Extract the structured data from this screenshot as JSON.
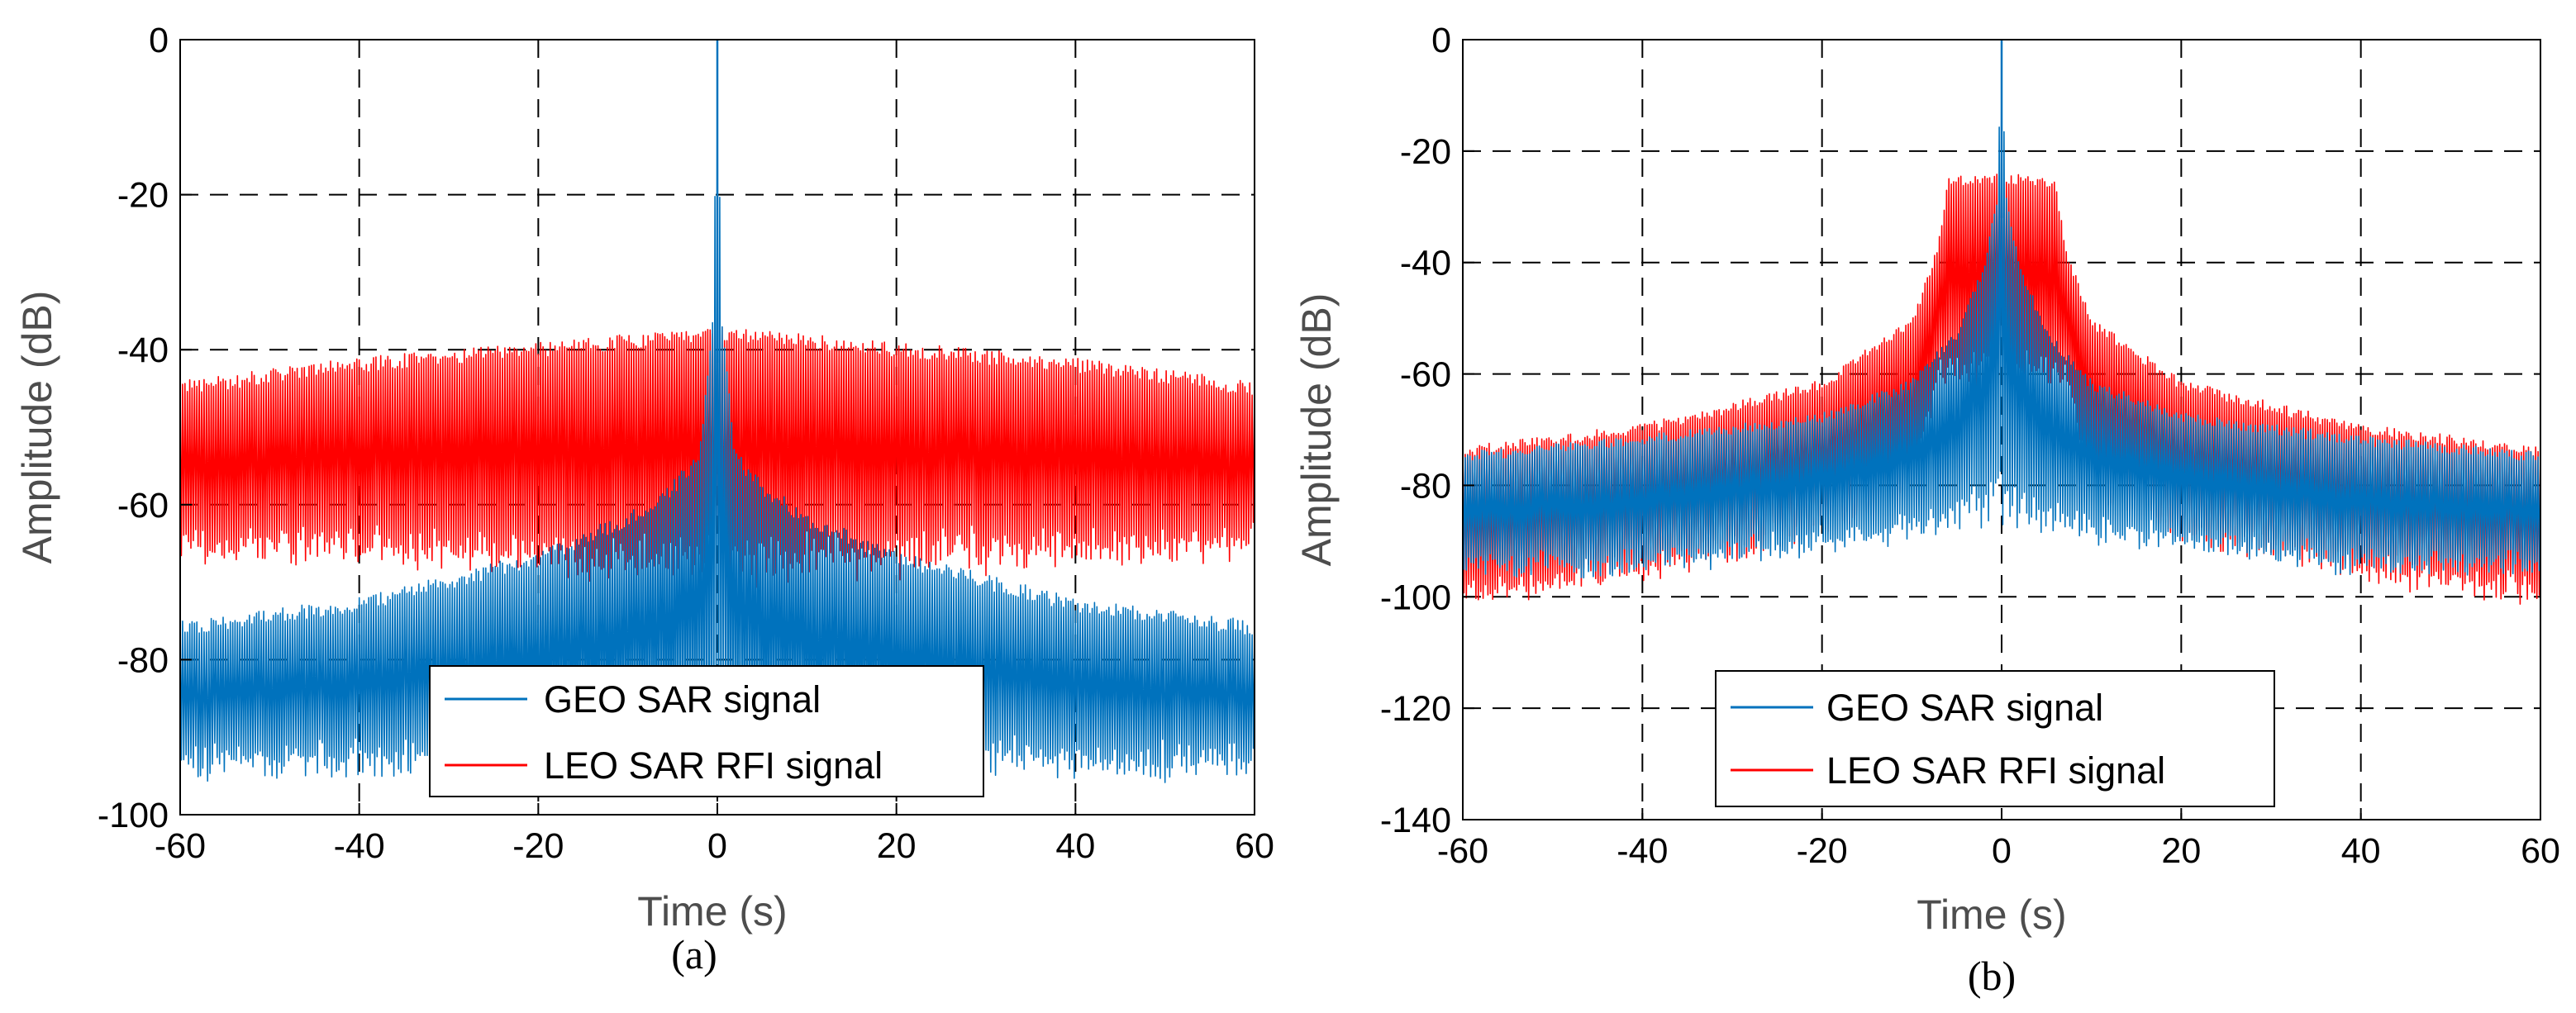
{
  "colors": {
    "geo": "#0072BD",
    "leo": "#FF0000",
    "grid": "#000000",
    "axis": "#000000"
  },
  "chart_data": [
    {
      "type": "line",
      "caption": "(a)",
      "xlabel": "Time (s)",
      "ylabel": "Amplitude (dB)",
      "xlim": [
        -60,
        60
      ],
      "ylim": [
        -100,
        0
      ],
      "xticks": [
        -60,
        -40,
        -20,
        0,
        20,
        40,
        60
      ],
      "yticks": [
        -100,
        -80,
        -60,
        -40,
        -20,
        0
      ],
      "xtick_labels": [
        "-60",
        "-40",
        "-20",
        "0",
        "20",
        "40",
        "60"
      ],
      "ytick_labels": [
        "-100",
        "-80",
        "-60",
        "-40",
        "-20",
        "0"
      ],
      "grid": true,
      "legend": {
        "position": "lower-center",
        "entries": [
          "GEO SAR signal",
          "LEO SAR RFI signal"
        ]
      },
      "series": [
        {
          "name": "GEO SAR signal",
          "color": "#0072BD",
          "upper_envelope": {
            "x": [
              -60,
              -40,
              -20,
              -10,
              -5,
              -2,
              -0.5,
              0,
              0.5,
              2,
              5,
              10,
              20,
              40,
              60
            ],
            "y": [
              -75,
              -72,
              -66,
              -61,
              -57,
              -53,
              -36,
              0,
              -36,
              -53,
              -57,
              -61,
              -66,
              -72,
              -75
            ]
          },
          "lower_envelope": {
            "x": [
              -60,
              -40,
              -20,
              0,
              20,
              40,
              60
            ],
            "y": [
              -93,
              -93,
              -93,
              -93,
              -93,
              -93,
              -93
            ]
          }
        },
        {
          "name": "LEO SAR RFI signal",
          "color": "#FF0000",
          "upper_envelope": {
            "x": [
              -60,
              -40,
              -20,
              0,
              20,
              40,
              60
            ],
            "y": [
              -44,
              -41,
              -39,
              -37,
              -39,
              -41,
              -44
            ]
          },
          "lower_envelope": {
            "x": [
              -60,
              -40,
              -20,
              0,
              20,
              40,
              60
            ],
            "y": [
              -65,
              -66,
              -67,
              -68,
              -67,
              -66,
              -65
            ]
          }
        }
      ]
    },
    {
      "type": "line",
      "caption": "(b)",
      "xlabel": "Time (s)",
      "ylabel": "Amplitude (dB)",
      "xlim": [
        -60,
        60
      ],
      "ylim": [
        -140,
        0
      ],
      "xticks": [
        -60,
        -40,
        -20,
        0,
        20,
        40,
        60
      ],
      "yticks": [
        -140,
        -120,
        -100,
        -80,
        -60,
        -40,
        -20,
        0
      ],
      "xtick_labels": [
        "-60",
        "-40",
        "-20",
        "0",
        "20",
        "40",
        "60"
      ],
      "ytick_labels": [
        "-140",
        "-120",
        "-100",
        "-80",
        "-60",
        "-40",
        "-20",
        "0"
      ],
      "grid": true,
      "legend": {
        "position": "lower-center",
        "entries": [
          "GEO SAR signal",
          "LEO SAR RFI signal"
        ]
      },
      "series": [
        {
          "name": "GEO SAR signal",
          "color": "#0072BD",
          "upper_envelope": {
            "x": [
              -60,
              -40,
              -20,
              -10,
              -5,
              -2,
              -0.5,
              0,
              0.5,
              2,
              5,
              10,
              20,
              40,
              60
            ],
            "y": [
              -74,
              -71,
              -67,
              -61,
              -52,
              -40,
              -28,
              0,
              -28,
              -40,
              -52,
              -61,
              -67,
              -71,
              -74
            ]
          },
          "lower_envelope": {
            "x": [
              -60,
              -40,
              -20,
              -10,
              -5,
              0,
              5,
              10,
              20,
              40,
              60
            ],
            "y": [
              -94,
              -94,
              -90,
              -88,
              -86,
              -85,
              -86,
              -88,
              -90,
              -94,
              -94
            ]
          }
        },
        {
          "name": "LEO SAR RFI signal",
          "color": "#FF0000",
          "upper_envelope": {
            "x": [
              -60,
              -40,
              -20,
              -10,
              -7,
              -6,
              -3,
              0,
              3,
              6,
              7,
              10,
              20,
              40,
              60
            ],
            "y": [
              -73,
              -69,
              -61,
              -50,
              -36,
              -25,
              -24,
              -24,
              -24,
              -25,
              -36,
              -50,
              -61,
              -69,
              -73
            ]
          },
          "lower_envelope": {
            "x": [
              -60,
              -40,
              -20,
              -10,
              -7,
              7,
              10,
              20,
              40,
              60
            ],
            "y": [
              -100,
              -95,
              -88,
              -80,
              -60,
              -60,
              -80,
              -88,
              -95,
              -100
            ]
          }
        }
      ]
    }
  ]
}
